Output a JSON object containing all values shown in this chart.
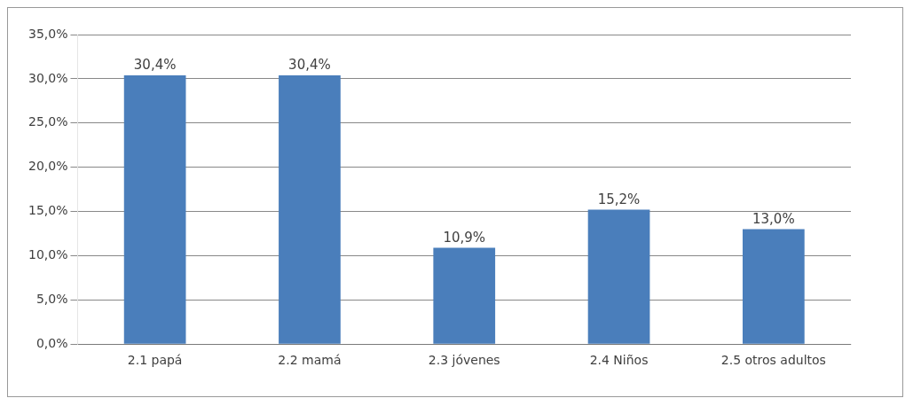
{
  "chart_data": {
    "type": "bar",
    "categories": [
      "2.1 papá",
      "2.2 mamá",
      "2.3 jóvenes",
      "2.4 Niños",
      "2.5 otros adultos"
    ],
    "values": [
      30.4,
      30.4,
      10.9,
      15.2,
      13.0
    ],
    "value_labels": [
      "30,4%",
      "30,4%",
      "10,9%",
      "15,2%",
      "13,0%"
    ],
    "color": "#4a7ebb",
    "ylim": [
      0,
      35
    ],
    "yticks": [
      {
        "value": 0,
        "label": "0,0%"
      },
      {
        "value": 5,
        "label": "5,0%"
      },
      {
        "value": 10,
        "label": "10,0%"
      },
      {
        "value": 15,
        "label": "15,0%"
      },
      {
        "value": 20,
        "label": "20,0%"
      },
      {
        "value": 25,
        "label": "25,0%"
      },
      {
        "value": 30,
        "label": "30,0%"
      },
      {
        "value": 35,
        "label": "35,0%"
      }
    ],
    "grid": "y",
    "legend": false
  }
}
